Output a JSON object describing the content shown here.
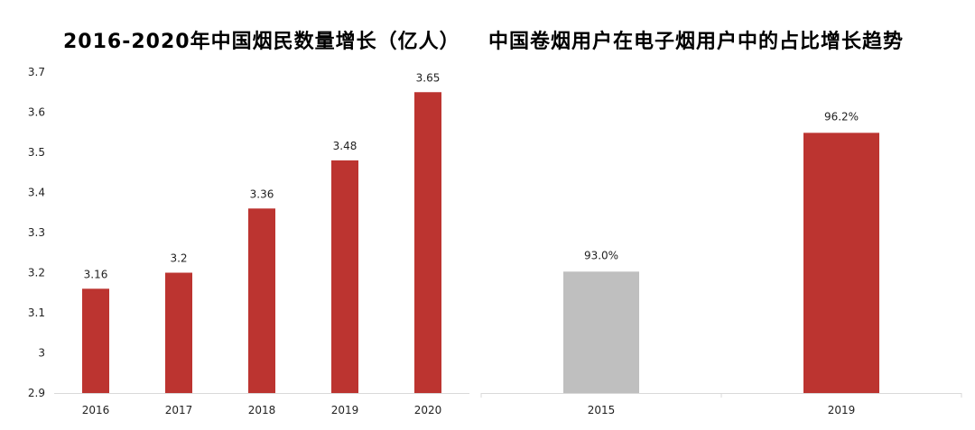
{
  "chart_data": [
    {
      "type": "bar",
      "title": "2016-2020年中国烟民数量增长（亿人）",
      "categories": [
        "2016",
        "2017",
        "2018",
        "2019",
        "2020"
      ],
      "values": [
        3.16,
        3.2,
        3.36,
        3.48,
        3.65
      ],
      "data_labels": [
        "3.16",
        "3.2",
        "3.36",
        "3.48",
        "3.65"
      ],
      "ylim": [
        2.9,
        3.7
      ],
      "yticks": [
        2.9,
        3.0,
        3.1,
        3.2,
        3.3,
        3.4,
        3.5,
        3.6,
        3.7
      ],
      "ytick_labels": [
        "2.9",
        "3",
        "3.1",
        "3.2",
        "3.3",
        "3.4",
        "3.5",
        "3.6",
        "3.7"
      ],
      "colors": [
        "#BC3430",
        "#BC3430",
        "#BC3430",
        "#BC3430",
        "#BC3430"
      ],
      "grid": false,
      "xlabel": "",
      "ylabel": ""
    },
    {
      "type": "bar",
      "title": "中国卷烟用户在电子烟用户中的占比增长趋势",
      "categories": [
        "2015",
        "2019"
      ],
      "values": [
        93.0,
        96.2
      ],
      "data_labels": [
        "93.0%",
        "96.2%"
      ],
      "ylim": [
        90.2,
        97.6
      ],
      "colors": [
        "#BFBFBF",
        "#BC3430"
      ],
      "grid": false,
      "y_axis_visible": false,
      "xlabel": "",
      "ylabel": ""
    }
  ]
}
